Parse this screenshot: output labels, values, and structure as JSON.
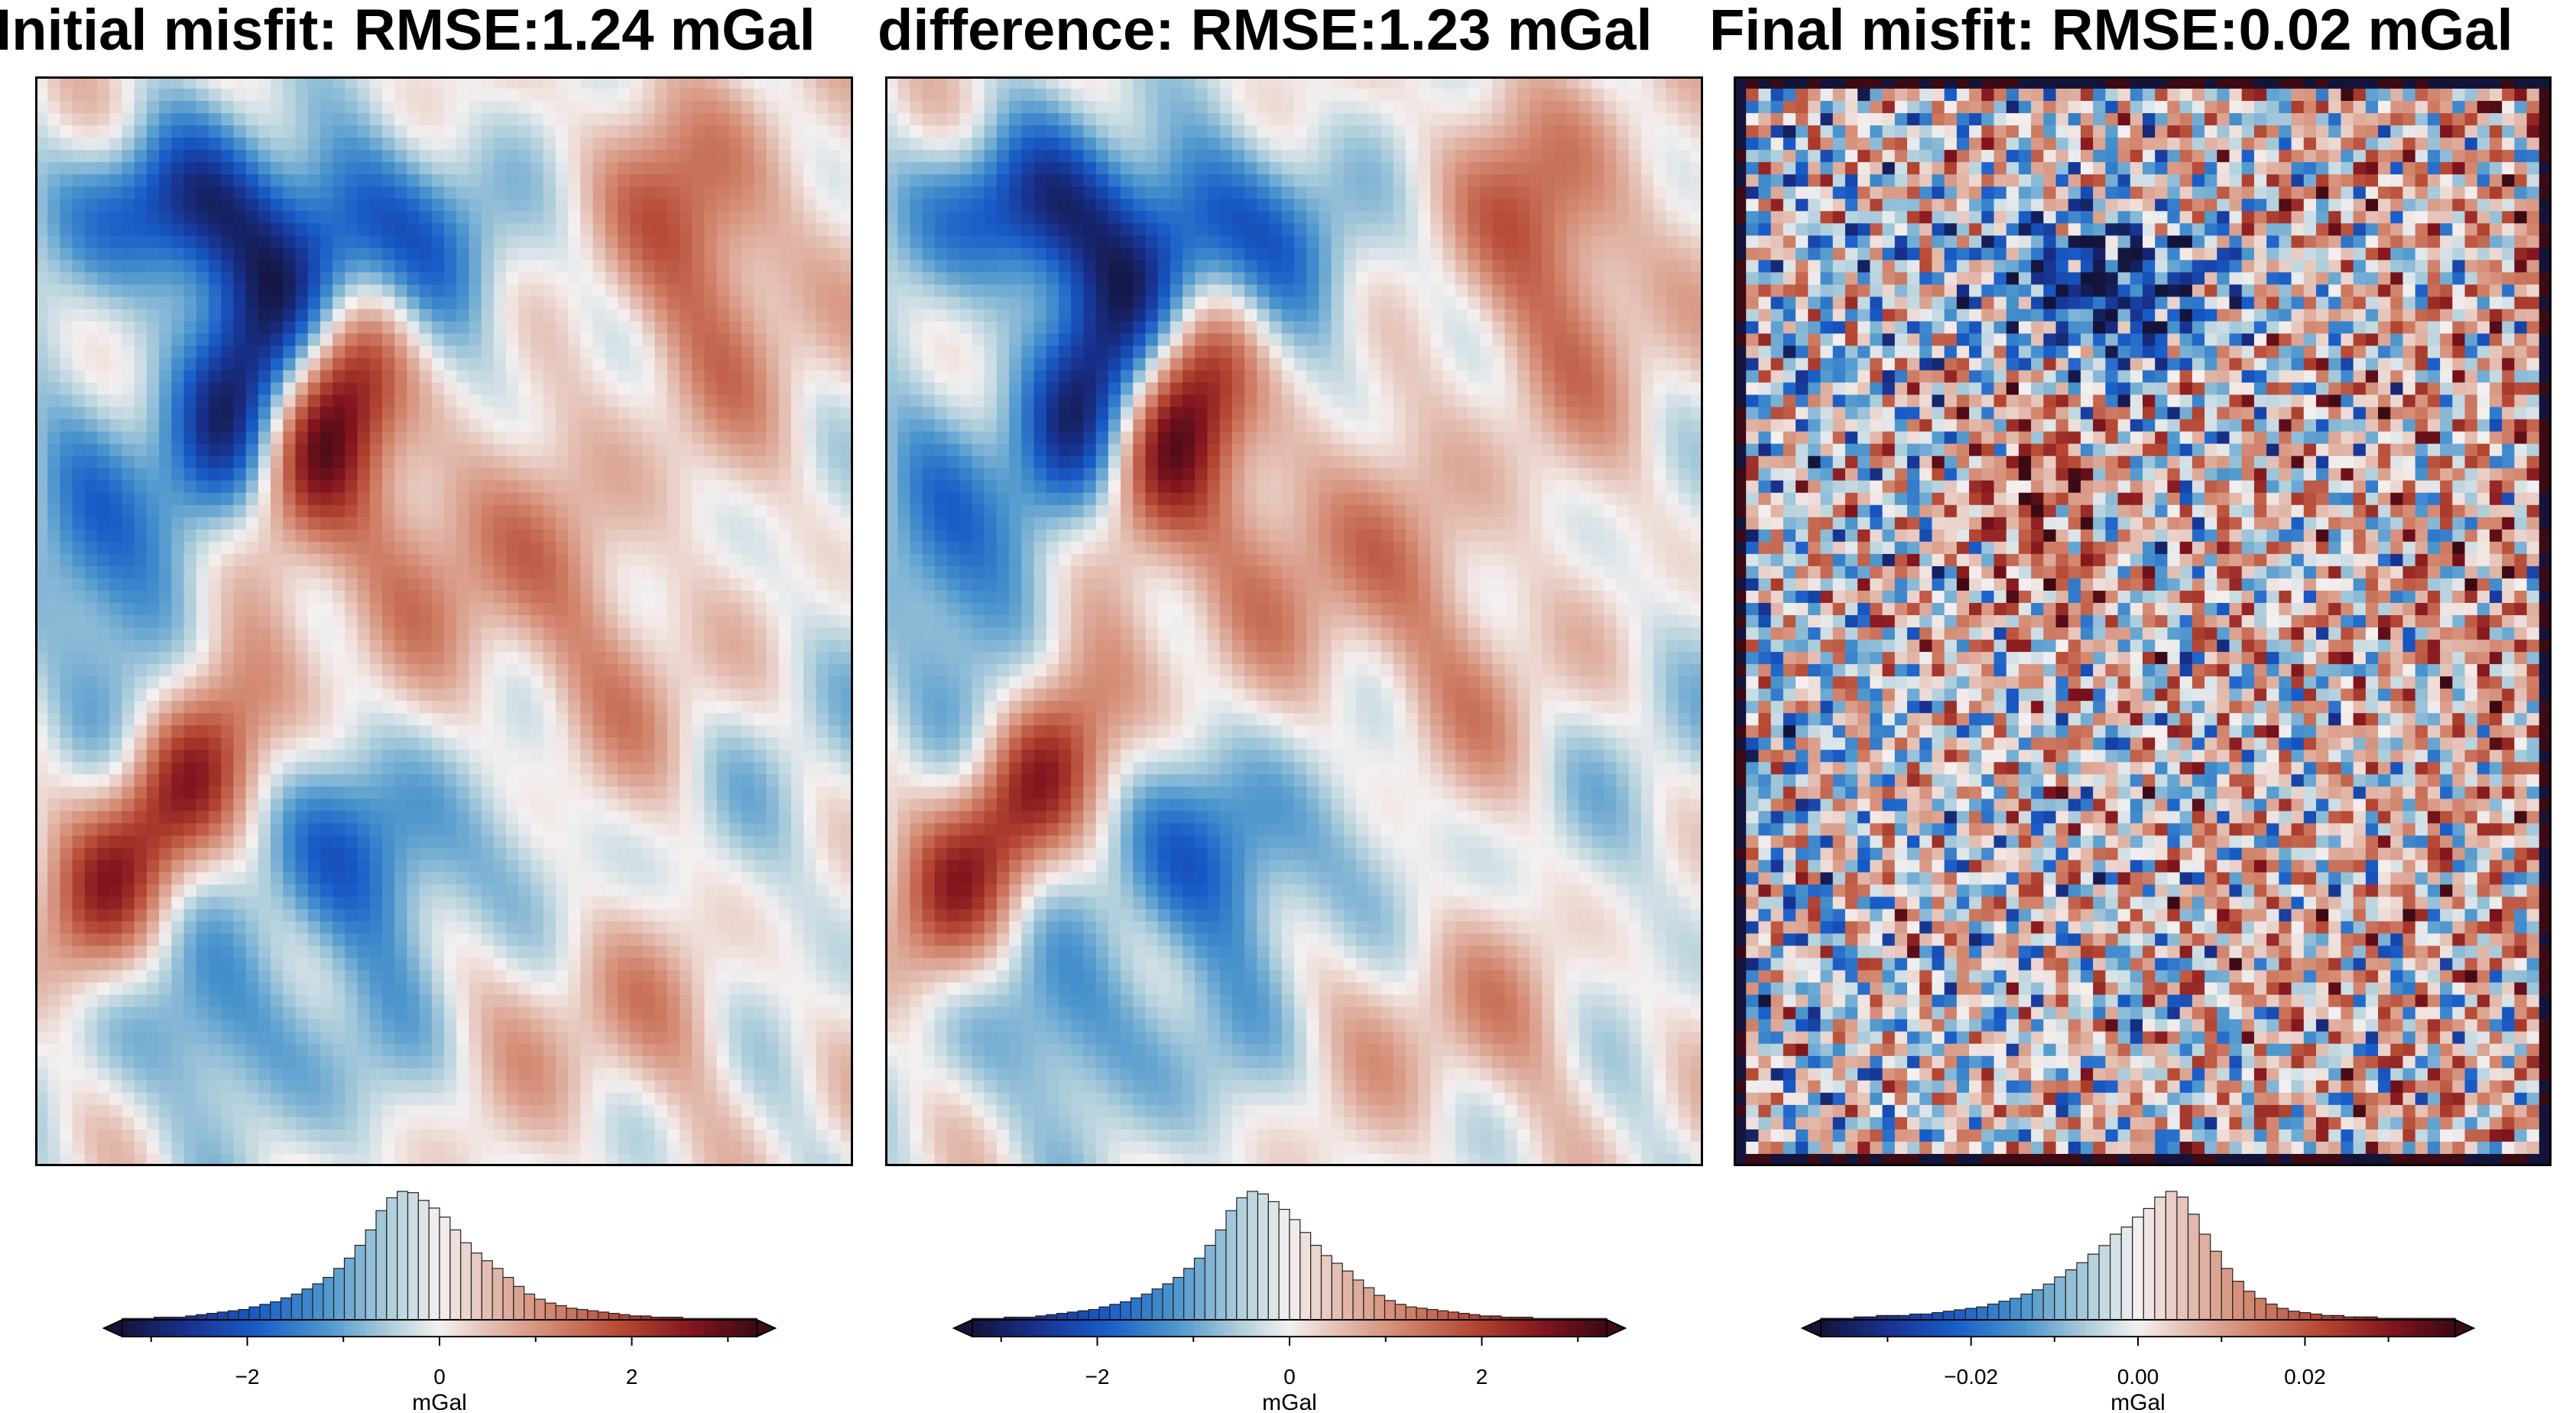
{
  "panels": [
    {
      "title": "Initial misfit: RMSE:1.24 mGal",
      "colorbar": {
        "unit": "mGal",
        "range": [
          -3.3,
          3.3
        ],
        "ticks": [
          -2,
          0,
          2
        ],
        "tick_labels": [
          "−2",
          "0",
          "2"
        ]
      }
    },
    {
      "title": "difference: RMSE:1.23 mGal",
      "colorbar": {
        "unit": "mGal",
        "range": [
          -3.3,
          3.3
        ],
        "ticks": [
          -2,
          0,
          2
        ],
        "tick_labels": [
          "−2",
          "0",
          "2"
        ]
      }
    },
    {
      "title": "Final misfit: RMSE:0.02 mGal",
      "colorbar": {
        "unit": "mGal",
        "range": [
          -0.038,
          0.038
        ],
        "ticks": [
          -0.02,
          0,
          0.02
        ],
        "tick_labels": [
          "−0.02",
          "0.00",
          "0.02"
        ]
      }
    }
  ],
  "chart_data": [
    {
      "type": "heatmap",
      "title": "Initial misfit: RMSE:1.24 mGal",
      "colormap": "diverging blue-white-red (balance)",
      "value_range": [
        -3.3,
        3.3
      ],
      "unit": "mGal",
      "histogram": {
        "bin_start": -3.3,
        "bin_end": 3.3,
        "counts": [
          1,
          1,
          1,
          2,
          2,
          2,
          3,
          4,
          5,
          6,
          7,
          8,
          10,
          12,
          14,
          17,
          20,
          24,
          28,
          33,
          40,
          48,
          58,
          70,
          85,
          95,
          100,
          99,
          93,
          87,
          80,
          70,
          60,
          52,
          46,
          40,
          33,
          26,
          20,
          16,
          13,
          11,
          9,
          8,
          7,
          6,
          5,
          4,
          3,
          3,
          2,
          2,
          2,
          1,
          1,
          1,
          1,
          1,
          1,
          1
        ]
      }
    },
    {
      "type": "heatmap",
      "title": "difference: RMSE:1.23 mGal",
      "colormap": "diverging blue-white-red (balance)",
      "value_range": [
        -3.3,
        3.3
      ],
      "unit": "mGal",
      "histogram": {
        "bin_start": -3.3,
        "bin_end": 3.3,
        "counts": [
          1,
          1,
          1,
          2,
          2,
          2,
          3,
          4,
          5,
          6,
          7,
          8,
          10,
          12,
          14,
          17,
          20,
          24,
          28,
          33,
          40,
          48,
          58,
          70,
          85,
          95,
          100,
          98,
          92,
          86,
          78,
          68,
          58,
          50,
          44,
          38,
          31,
          25,
          19,
          15,
          12,
          10,
          9,
          8,
          7,
          6,
          5,
          4,
          3,
          3,
          2,
          2,
          2,
          1,
          1,
          1,
          1,
          1,
          1,
          1
        ]
      }
    },
    {
      "type": "heatmap",
      "title": "Final misfit: RMSE:0.02 mGal",
      "colormap": "diverging blue-white-red (balance)",
      "value_range": [
        -0.038,
        0.038
      ],
      "unit": "mGal",
      "histogram": {
        "bin_start": -0.038,
        "bin_end": 0.038,
        "counts": [
          1,
          1,
          1,
          2,
          2,
          3,
          3,
          3,
          4,
          4,
          5,
          6,
          7,
          8,
          9,
          11,
          13,
          15,
          18,
          21,
          25,
          30,
          35,
          40,
          46,
          52,
          60,
          65,
          72,
          78,
          86,
          90,
          86,
          74,
          60,
          48,
          36,
          27,
          20,
          15,
          11,
          8,
          6,
          5,
          4,
          3,
          3,
          2,
          2,
          2,
          1,
          1,
          1,
          1,
          1,
          1,
          1
        ]
      }
    }
  ]
}
